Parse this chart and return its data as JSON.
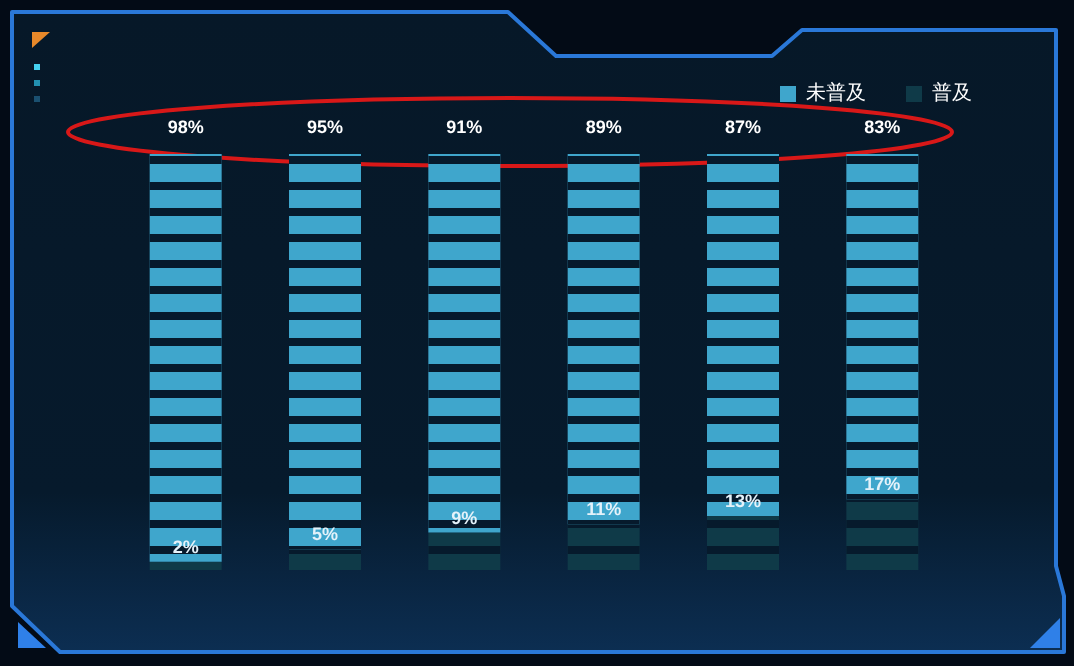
{
  "chart_data": {
    "type": "bar",
    "stacked": true,
    "categories": [
      null,
      null,
      null,
      null,
      null,
      null
    ],
    "series": [
      {
        "name": "普及",
        "color": "#0f3a48",
        "values": [
          2,
          5,
          9,
          11,
          13,
          17
        ],
        "value_labels": [
          "2%",
          "5%",
          "9%",
          "11%",
          "13%",
          "17%"
        ]
      },
      {
        "name": "未普及",
        "color": "#3fa6cc",
        "values": [
          98,
          95,
          91,
          89,
          87,
          83
        ],
        "value_labels": [
          "98%",
          "95%",
          "91%",
          "89%",
          "87%",
          "83%"
        ]
      }
    ],
    "ylim": [
      0,
      100
    ],
    "legend": "top right",
    "tick_labels": false
  }
}
